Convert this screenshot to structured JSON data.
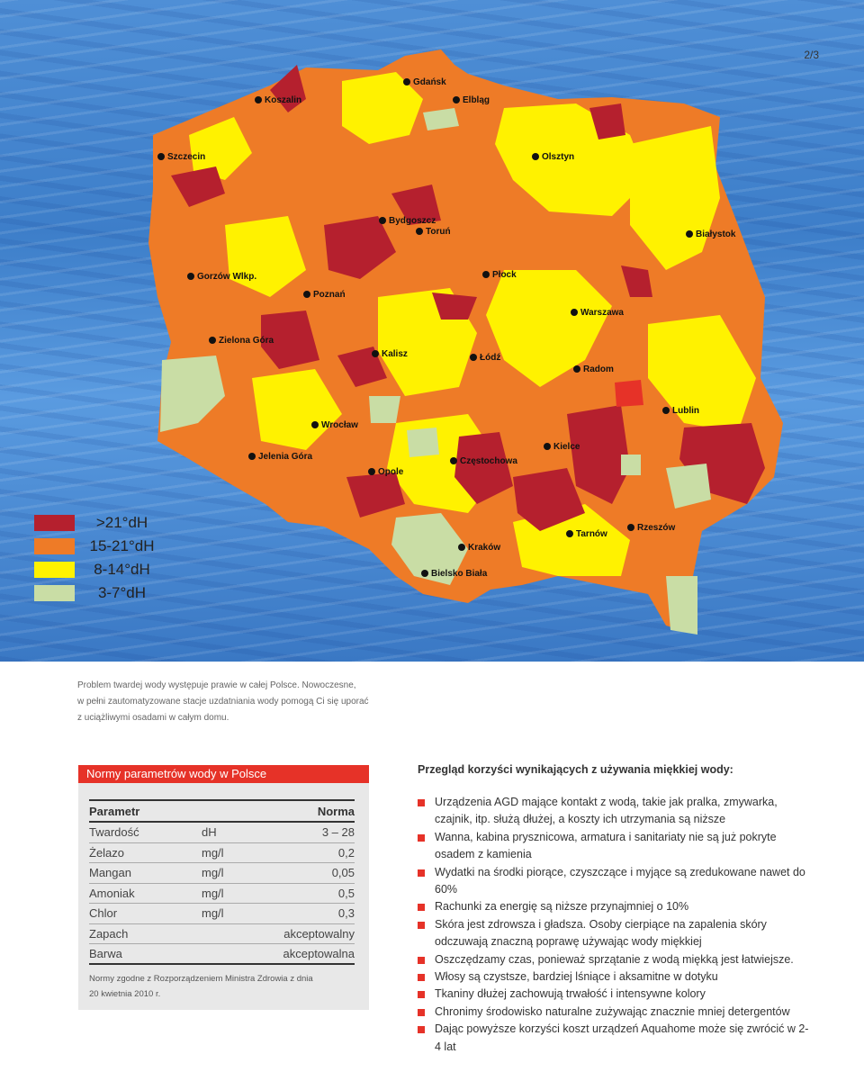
{
  "page_number": "2/3",
  "map": {
    "colors": {
      "above21": "#b5202e",
      "range15_21": "#ee7b27",
      "range8_14": "#fff200",
      "range3_7": "#c9dda5",
      "water": "#4a89d4"
    },
    "cities": [
      "Gdańsk",
      "Elbląg",
      "Koszalin",
      "Szczecin",
      "Olsztyn",
      "Bydgoszcz",
      "Toruń",
      "Białystok",
      "Gorzów Wlkp.",
      "Płock",
      "Poznań",
      "Warszawa",
      "Zielona Góra",
      "Kalisz",
      "Łódź",
      "Radom",
      "Lublin",
      "Wrocław",
      "Jelenia Góra",
      "Kielce",
      "Opole",
      "Częstochowa",
      "Tarnów",
      "Rzeszów",
      "Kraków",
      "Bielsko Biała"
    ]
  },
  "legend": [
    {
      "label": ">21°dH",
      "color": "#b5202e"
    },
    {
      "label": "15-21°dH",
      "color": "#ee7b27"
    },
    {
      "label": "8-14°dH",
      "color": "#fff200"
    },
    {
      "label": "3-7°dH",
      "color": "#c9dda5"
    }
  ],
  "caption": {
    "line1": "Problem twardej wody występuje prawie w całej Polsce. Nowoczesne,",
    "line2": "w pełni zautomatyzowane stacje uzdatniania wody pomogą Ci się uporać",
    "line3": "z uciążliwymi osadami w całym domu."
  },
  "norms": {
    "title": "Normy parametrów wody w Polsce",
    "header": {
      "param": "Parametr",
      "norm": "Norma"
    },
    "rows": [
      {
        "param": "Twardość",
        "unit": "dH",
        "value": "3 – 28"
      },
      {
        "param": "Żelazo",
        "unit": "mg/l",
        "value": "0,2"
      },
      {
        "param": "Mangan",
        "unit": "mg/l",
        "value": "0,05"
      },
      {
        "param": "Amoniak",
        "unit": "mg/l",
        "value": "0,5"
      },
      {
        "param": "Chlor",
        "unit": "mg/l",
        "value": "0,3"
      },
      {
        "param": "Zapach",
        "unit": "",
        "value": "akceptowalny"
      },
      {
        "param": "Barwa",
        "unit": "",
        "value": "akceptowalna"
      }
    ],
    "note_line1": "Normy zgodne z Rozporządzeniem Ministra Zdrowia z dnia",
    "note_line2": "20 kwietnia 2010 r."
  },
  "benefits": {
    "title": "Przegląd korzyści wynikających z używania miękkiej wody:",
    "items": [
      "Urządzenia AGD mające kontakt z wodą, takie jak pralka, zmywarka, czajnik, itp. służą dłużej, a koszty ich utrzymania są niższe",
      "Wanna, kabina prysznicowa, armatura i sanitariaty nie są już pokryte osadem z kamienia",
      "Wydatki na środki piorące, czyszczące i myjące są zredukowane nawet do 60%",
      "Rachunki za energię są niższe przynajmniej o 10%",
      "Skóra jest zdrowsza i gładsza. Osoby cierpiące na zapalenia skóry odczuwają znaczną poprawę używając wody miękkiej",
      "Oszczędzamy czas, ponieważ sprzątanie z wodą miękką jest łatwiejsze.",
      "Włosy są czystsze, bardziej lśniące i aksamitne w dotyku",
      "Tkaniny dłużej zachowują trwałość i intensywne kolory",
      "Chronimy środowisko naturalne zużywając znacznie mniej detergentów",
      "Dając powyższe korzyści koszt urządzeń Aquahome może się zwrócić w 2-4 lat"
    ]
  }
}
